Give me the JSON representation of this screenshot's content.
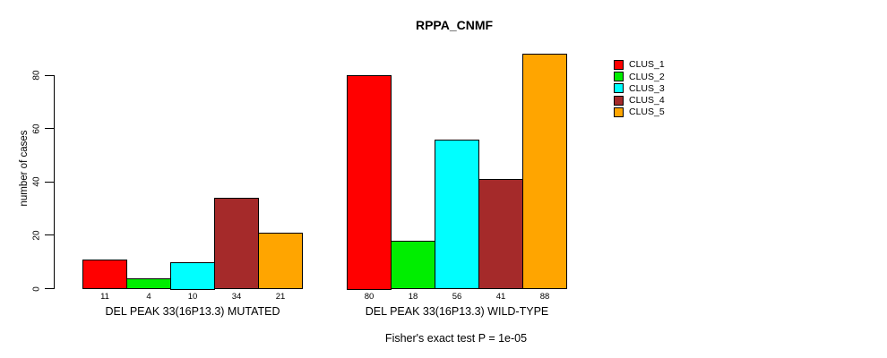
{
  "chart_data": {
    "type": "bar",
    "title": "RPPA_CNMF",
    "ylabel": "number of cases",
    "xlabel": "",
    "footnote": "Fisher's exact test P = 1e-05",
    "ylim": [
      0,
      88
    ],
    "yticks": [
      0,
      20,
      40,
      60,
      80
    ],
    "grid": false,
    "legend_position": "right",
    "bar_value_labels_shown": true,
    "legend": [
      {
        "label": "CLUS_1",
        "color": "#FF0000"
      },
      {
        "label": "CLUS_2",
        "color": "#00EE00"
      },
      {
        "label": "CLUS_3",
        "color": "#00FFFF"
      },
      {
        "label": "CLUS_4",
        "color": "#A52A2A"
      },
      {
        "label": "CLUS_5",
        "color": "#FFA500"
      }
    ],
    "groups": [
      {
        "label": "DEL PEAK 33(16P13.3) MUTATED",
        "values": [
          11,
          4,
          10,
          34,
          21
        ]
      },
      {
        "label": "DEL PEAK 33(16P13.3) WILD-TYPE",
        "values": [
          80,
          18,
          56,
          41,
          88
        ]
      }
    ]
  }
}
